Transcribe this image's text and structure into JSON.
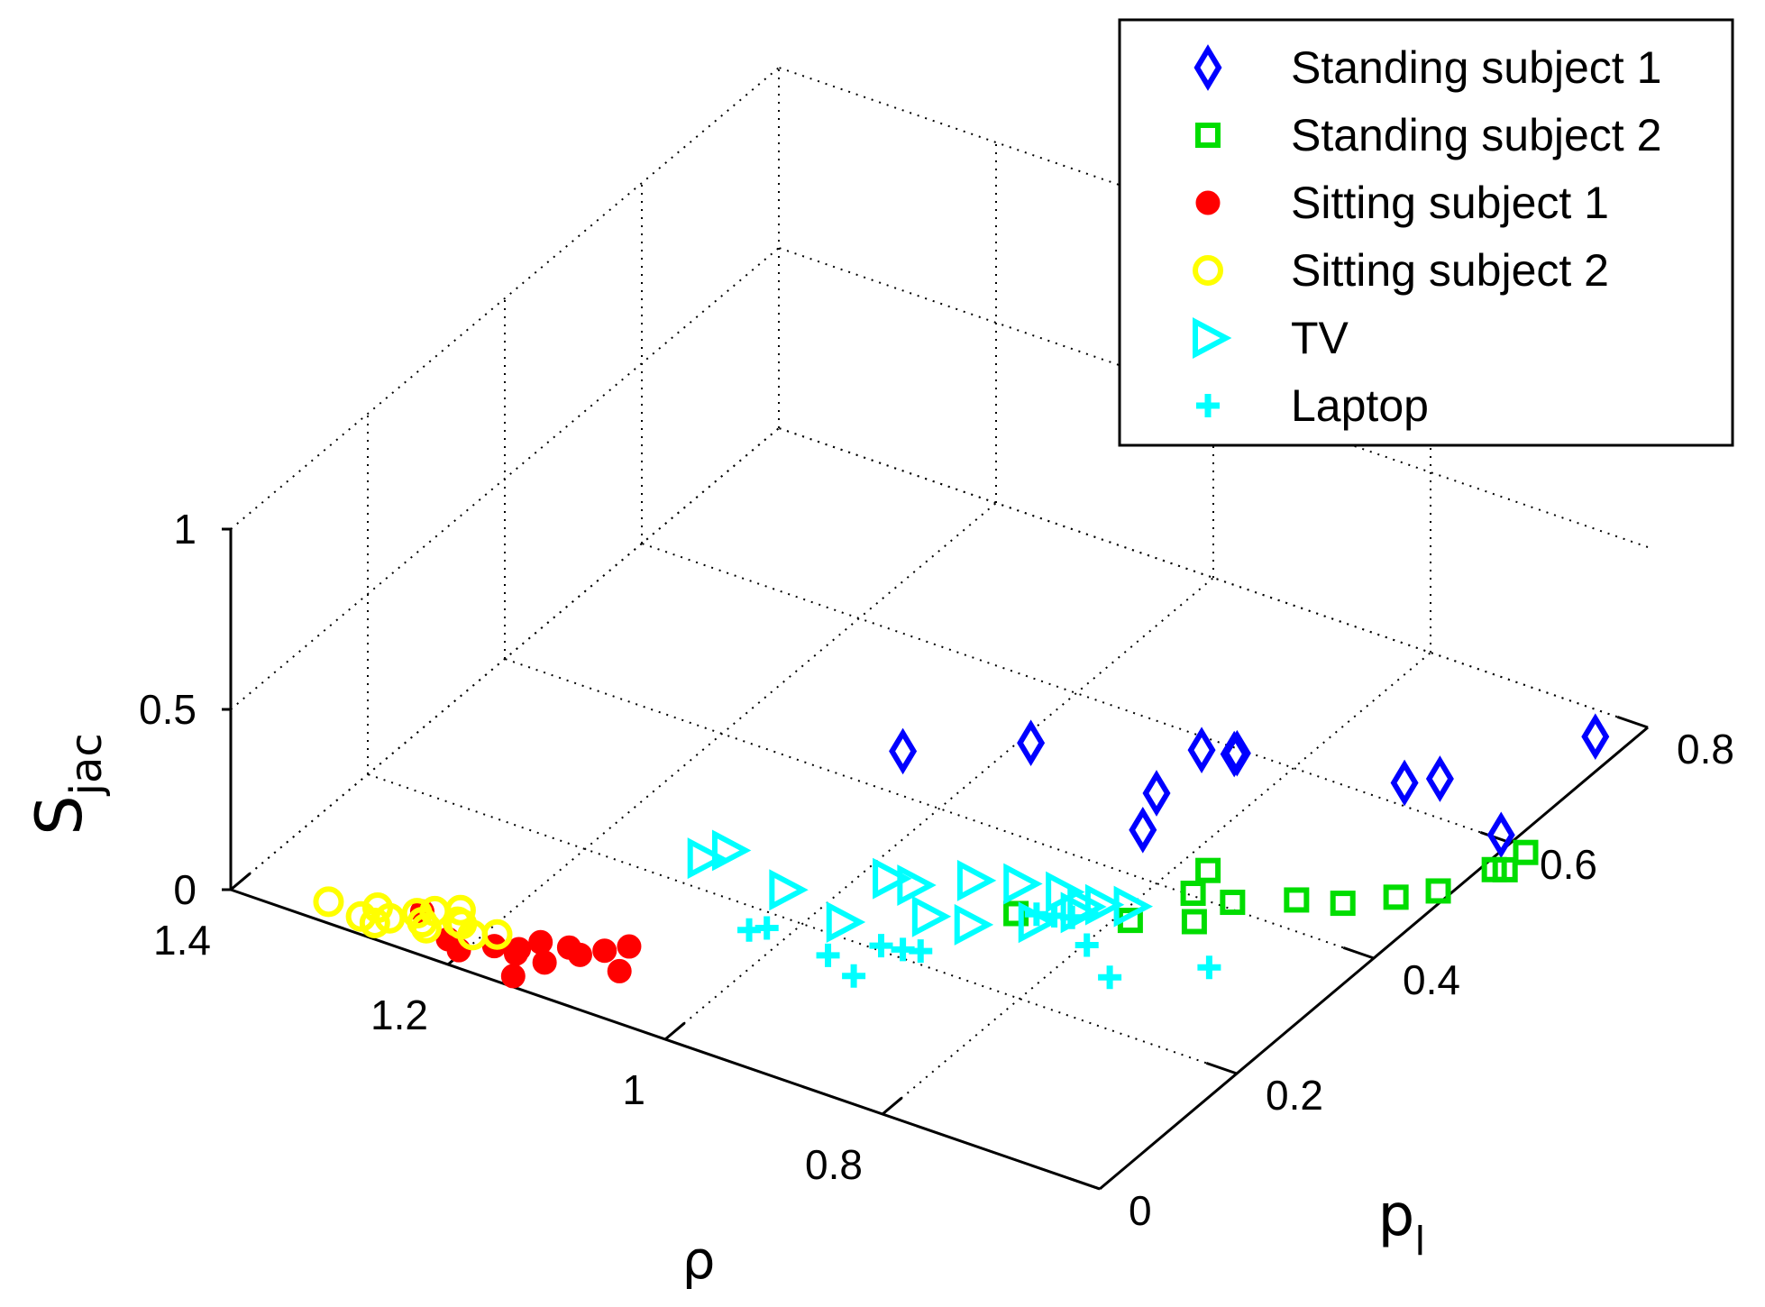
{
  "chart_data": {
    "type": "scatter3d",
    "title": "",
    "axes": {
      "x": {
        "label": "ρ",
        "ticks": [
          1.4,
          1.2,
          1,
          0.8
        ],
        "tick_labels": [
          "1.4",
          "1.2",
          "1",
          "0.8"
        ],
        "range": [
          0.6,
          1.4
        ]
      },
      "y": {
        "label": "p",
        "label_subscript": "l",
        "ticks": [
          0,
          0.2,
          0.4,
          0.6,
          0.8
        ],
        "tick_labels": [
          "0",
          "0.2",
          "0.4",
          "0.6",
          "0.8"
        ],
        "range": [
          0,
          0.8
        ]
      },
      "z": {
        "label": "S",
        "label_subscript": "jac",
        "ticks": [
          0,
          0.5,
          1
        ],
        "tick_labels": [
          "0",
          "0.5",
          "1"
        ],
        "range": [
          0,
          1
        ]
      }
    },
    "grid": true,
    "legend_position": "top-right",
    "series": [
      {
        "name": "Standing subject 1",
        "marker": "diamond",
        "color": "#0000ff",
        "points": [
          [
            0.92,
            0.22,
            0.53
          ],
          [
            0.84,
            0.28,
            0.54
          ],
          [
            0.79,
            0.45,
            0.3
          ],
          [
            0.76,
            0.45,
            0.32
          ],
          [
            0.8,
            0.4,
            0.25
          ],
          [
            0.8,
            0.38,
            0.18
          ],
          [
            0.77,
            0.47,
            0.28
          ],
          [
            0.66,
            0.54,
            0.2
          ],
          [
            0.64,
            0.56,
            0.2
          ],
          [
            0.56,
            0.66,
            0.24
          ],
          [
            0.59,
            0.57,
            0.08
          ]
        ]
      },
      {
        "name": "Standing subject 2",
        "marker": "square",
        "color": "#00dd00",
        "points": [
          [
            0.74,
            0.38,
            0.13
          ],
          [
            0.76,
            0.39,
            0.03
          ],
          [
            0.78,
            0.33,
            0.03
          ],
          [
            0.74,
            0.36,
            0.02
          ],
          [
            0.73,
            0.4,
            0.02
          ],
          [
            0.69,
            0.43,
            0.02
          ],
          [
            0.66,
            0.45,
            0.01
          ],
          [
            0.63,
            0.48,
            0.01
          ],
          [
            0.61,
            0.51,
            0.0
          ],
          [
            0.58,
            0.56,
            0.01
          ],
          [
            0.59,
            0.56,
            0.0
          ],
          [
            0.86,
            0.29,
            0.03
          ],
          [
            0.58,
            0.59,
            0.01
          ]
        ]
      },
      {
        "name": "Sitting subject 1",
        "marker": "filled-circle",
        "color": "#ff0000",
        "points": [
          [
            1.23,
            0.01,
            0.1
          ],
          [
            1.2,
            0.0,
            0.07
          ],
          [
            1.19,
            0.0,
            0.05
          ],
          [
            1.17,
            0.02,
            0.05
          ],
          [
            1.14,
            0.04,
            0.06
          ],
          [
            1.15,
            0.02,
            0.05
          ],
          [
            1.13,
            0.03,
            0.03
          ],
          [
            1.12,
            0.05,
            0.05
          ],
          [
            1.11,
            0.05,
            0.04
          ],
          [
            1.1,
            0.07,
            0.03
          ],
          [
            1.09,
            0.09,
            0.02
          ],
          [
            1.08,
            0.06,
            0.01
          ],
          [
            1.16,
            0.04,
            0.02
          ],
          [
            1.14,
            0.0,
            0.03
          ]
        ]
      },
      {
        "name": "Sitting subject 2",
        "marker": "circle",
        "color": "#ffff00",
        "points": [
          [
            1.31,
            0.0,
            0.06
          ],
          [
            1.28,
            0.0,
            0.05
          ],
          [
            1.26,
            0.01,
            0.05
          ],
          [
            1.23,
            0.01,
            0.07
          ],
          [
            1.22,
            0.0,
            0.08
          ],
          [
            1.2,
            0.02,
            0.08
          ],
          [
            1.19,
            0.02,
            0.06
          ],
          [
            1.21,
            0.03,
            0.06
          ],
          [
            1.18,
            0.04,
            0.04
          ],
          [
            1.22,
            0.05,
            0.05
          ],
          [
            1.26,
            0.05,
            0.0
          ],
          [
            1.28,
            0.02,
            0.0
          ],
          [
            1.25,
            0.06,
            0.0
          ],
          [
            1.29,
            0.04,
            0.0
          ]
        ]
      },
      {
        "name": "TV",
        "marker": "triangle-right",
        "color": "#00ffff",
        "points": [
          [
            1.06,
            0.15,
            0.2
          ],
          [
            1.05,
            0.17,
            0.2
          ],
          [
            1.01,
            0.19,
            0.1
          ],
          [
            0.94,
            0.23,
            0.14
          ],
          [
            0.93,
            0.25,
            0.1
          ],
          [
            0.91,
            0.24,
            0.05
          ],
          [
            0.97,
            0.21,
            0.02
          ],
          [
            0.9,
            0.29,
            0.08
          ],
          [
            0.87,
            0.31,
            0.07
          ],
          [
            0.85,
            0.3,
            0.0
          ],
          [
            0.89,
            0.27,
            0.0
          ],
          [
            0.85,
            0.34,
            0.02
          ],
          [
            0.83,
            0.33,
            0.0
          ],
          [
            0.83,
            0.34,
            0.0
          ],
          [
            0.82,
            0.35,
            0.0
          ],
          [
            0.8,
            0.36,
            0.0
          ]
        ]
      },
      {
        "name": "Laptop",
        "marker": "plus",
        "color": "#00ffff",
        "points": [
          [
            1.03,
            0.17,
            0.0
          ],
          [
            1.02,
            0.18,
            0.0
          ],
          [
            0.97,
            0.19,
            -0.04
          ],
          [
            0.94,
            0.22,
            -0.03
          ],
          [
            0.92,
            0.22,
            -0.02
          ],
          [
            0.91,
            0.23,
            -0.03
          ],
          [
            0.94,
            0.18,
            -0.05
          ],
          [
            0.86,
            0.32,
            -0.02
          ],
          [
            0.85,
            0.33,
            -0.03
          ],
          [
            0.84,
            0.34,
            -0.04
          ],
          [
            0.82,
            0.33,
            -0.08
          ],
          [
            0.78,
            0.3,
            -0.08
          ],
          [
            0.72,
            0.35,
            -0.07
          ]
        ]
      }
    ]
  }
}
